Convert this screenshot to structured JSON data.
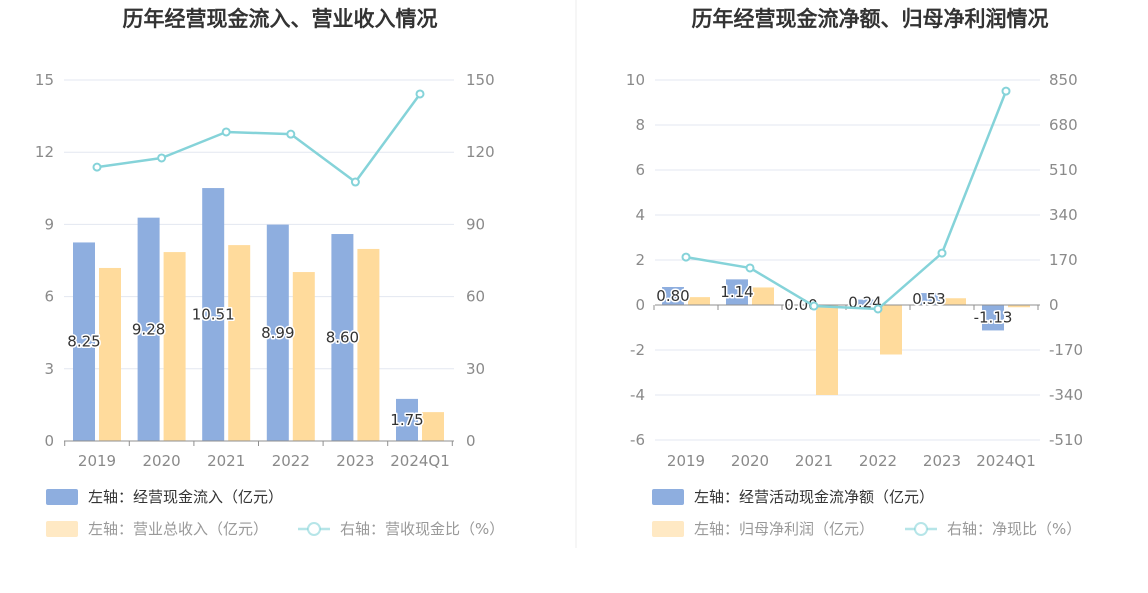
{
  "chart_data": [
    {
      "type": "bar",
      "title": "历年经营现金流入、营业收入情况",
      "categories": [
        "2019",
        "2020",
        "2021",
        "2022",
        "2023",
        "2024Q1"
      ],
      "yticks": [
        "0",
        "3",
        "6",
        "9",
        "12",
        "15"
      ],
      "y2ticks": [
        "0",
        "30",
        "60",
        "90",
        "120",
        "150"
      ],
      "ylim": [
        0,
        15
      ],
      "y2lim": [
        0,
        150
      ],
      "grid": true,
      "legend": "bottom-left",
      "series": [
        {
          "name": "左轴：经营现金流入（亿元）",
          "type": "bar",
          "axis": "left",
          "color": "#8eaedf",
          "values": [
            8.25,
            9.28,
            10.51,
            8.99,
            8.6,
            1.75
          ],
          "labels": [
            "8.25",
            "9.28",
            "10.51",
            "8.99",
            "8.60",
            "1.75"
          ]
        },
        {
          "name": "左轴：营业总收入（亿元）",
          "type": "bar",
          "axis": "left",
          "color": "#ffdb9c",
          "values": [
            7.19,
            7.85,
            8.14,
            7.02,
            7.98,
            1.2
          ]
        },
        {
          "name": "右轴：营收现金比（%）",
          "type": "line",
          "axis": "right",
          "color": "#85d3d9",
          "values": [
            113.8,
            117.6,
            128.4,
            127.5,
            107.6,
            144.2
          ]
        }
      ]
    },
    {
      "type": "bar",
      "title": "历年经营现金流净额、归母净利润情况",
      "categories": [
        "2019",
        "2020",
        "2021",
        "2022",
        "2023",
        "2024Q1"
      ],
      "yticks": [
        "-6",
        "-4",
        "-2",
        "0",
        "2",
        "4",
        "6",
        "8",
        "10"
      ],
      "y2ticks": [
        "-510",
        "-340",
        "-170",
        "0",
        "170",
        "340",
        "510",
        "680",
        "850"
      ],
      "ylim": [
        -6,
        10
      ],
      "y2lim": [
        -510,
        850
      ],
      "grid": true,
      "legend": "bottom-left",
      "series": [
        {
          "name": "左轴：经营活动现金流净额（亿元）",
          "type": "bar",
          "axis": "left",
          "color": "#8eaedf",
          "values": [
            0.8,
            1.14,
            0.0,
            0.24,
            0.53,
            -1.13
          ],
          "labels": [
            "0.80",
            "1.14",
            "0.00",
            "0.24",
            "0.53",
            "-1.13"
          ]
        },
        {
          "name": "左轴：归母净利润（亿元）",
          "type": "bar",
          "axis": "left",
          "color": "#ffdb9c",
          "values": [
            0.35,
            0.78,
            -4.0,
            -2.2,
            0.3,
            -0.1
          ]
        },
        {
          "name": "右轴：净现比（%）",
          "type": "line",
          "axis": "right",
          "color": "#85d3d9",
          "values": [
            181,
            140,
            -4,
            -15,
            196,
            808
          ]
        }
      ]
    }
  ]
}
